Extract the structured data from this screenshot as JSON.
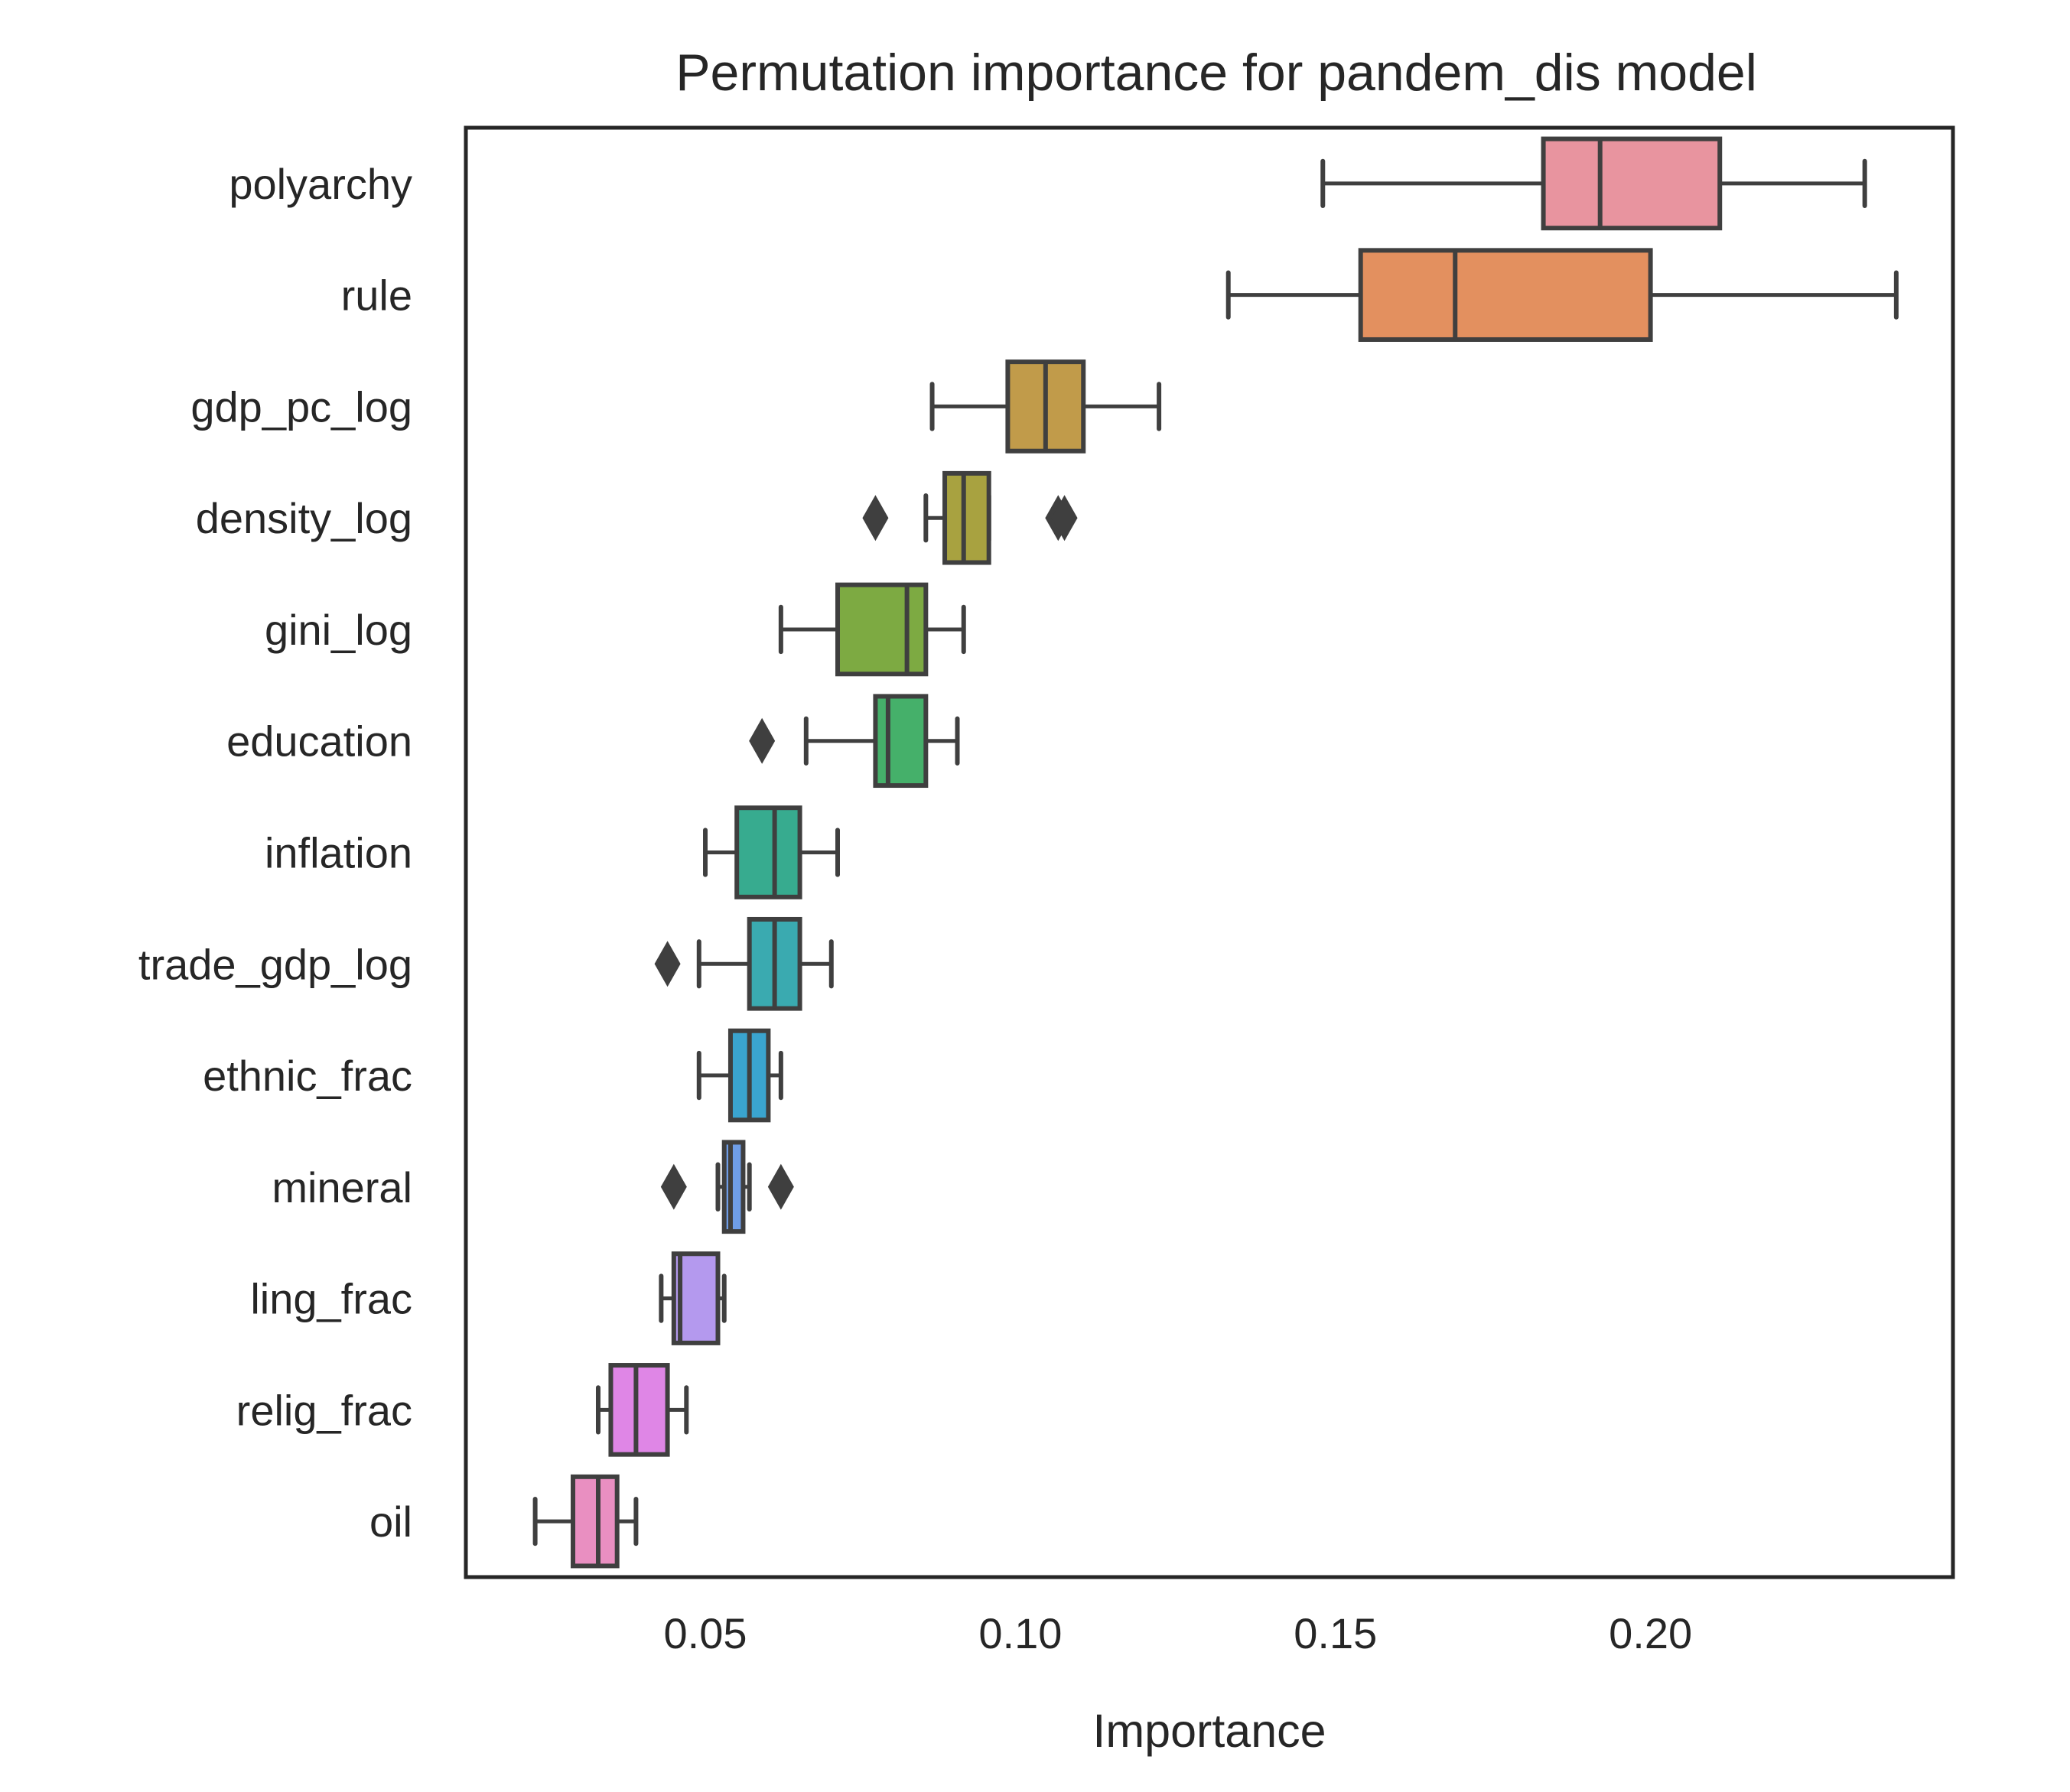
{
  "chart_data": {
    "type": "boxplot",
    "orientation": "horizontal",
    "title": "Permutation importance for pandem_dis model",
    "xlabel": "Importance",
    "ylabel": "",
    "xlim": [
      0.012,
      0.248
    ],
    "xticks": [
      0.05,
      0.1,
      0.15,
      0.2
    ],
    "xtick_labels": [
      "0.05",
      "0.10",
      "0.15",
      "0.20"
    ],
    "grid": false,
    "legend": "none",
    "series": [
      {
        "name": "polyarchy",
        "whisker_low": 0.148,
        "q1": 0.183,
        "median": 0.192,
        "q3": 0.211,
        "whisker_high": 0.234,
        "outliers": [],
        "color": "#e8949f"
      },
      {
        "name": "rule",
        "whisker_low": 0.133,
        "q1": 0.154,
        "median": 0.169,
        "q3": 0.2,
        "whisker_high": 0.239,
        "outliers": [],
        "color": "#e3905f"
      },
      {
        "name": "gdp_pc_log",
        "whisker_low": 0.086,
        "q1": 0.098,
        "median": 0.104,
        "q3": 0.11,
        "whisker_high": 0.122,
        "outliers": [],
        "color": "#c19b4a"
      },
      {
        "name": "density_log",
        "whisker_low": 0.085,
        "q1": 0.088,
        "median": 0.091,
        "q3": 0.095,
        "whisker_high": 0.095,
        "outliers": [
          0.077,
          0.106,
          0.107
        ],
        "color": "#a8a240"
      },
      {
        "name": "gini_log",
        "whisker_low": 0.062,
        "q1": 0.071,
        "median": 0.082,
        "q3": 0.085,
        "whisker_high": 0.091,
        "outliers": [],
        "color": "#7daa42"
      },
      {
        "name": "education",
        "whisker_low": 0.066,
        "q1": 0.077,
        "median": 0.079,
        "q3": 0.085,
        "whisker_high": 0.09,
        "outliers": [
          0.059
        ],
        "color": "#45b06a"
      },
      {
        "name": "inflation",
        "whisker_low": 0.05,
        "q1": 0.055,
        "median": 0.061,
        "q3": 0.065,
        "whisker_high": 0.071,
        "outliers": [],
        "color": "#37ab8f"
      },
      {
        "name": "trade_gdp_log",
        "whisker_low": 0.049,
        "q1": 0.057,
        "median": 0.061,
        "q3": 0.065,
        "whisker_high": 0.07,
        "outliers": [
          0.044
        ],
        "color": "#3aaab0"
      },
      {
        "name": "ethnic_frac",
        "whisker_low": 0.049,
        "q1": 0.054,
        "median": 0.057,
        "q3": 0.06,
        "whisker_high": 0.062,
        "outliers": [],
        "color": "#3aa4cf"
      },
      {
        "name": "mineral",
        "whisker_low": 0.052,
        "q1": 0.053,
        "median": 0.054,
        "q3": 0.056,
        "whisker_high": 0.057,
        "outliers": [
          0.045,
          0.062
        ],
        "color": "#6f9ee8"
      },
      {
        "name": "ling_frac",
        "whisker_low": 0.043,
        "q1": 0.045,
        "median": 0.046,
        "q3": 0.052,
        "whisker_high": 0.053,
        "outliers": [],
        "color": "#b499ee"
      },
      {
        "name": "relig_frac",
        "whisker_low": 0.033,
        "q1": 0.035,
        "median": 0.039,
        "q3": 0.044,
        "whisker_high": 0.047,
        "outliers": [],
        "color": "#df86e6"
      },
      {
        "name": "oil",
        "whisker_low": 0.023,
        "q1": 0.029,
        "median": 0.033,
        "q3": 0.036,
        "whisker_high": 0.039,
        "outliers": [],
        "color": "#e98fc1"
      }
    ]
  }
}
